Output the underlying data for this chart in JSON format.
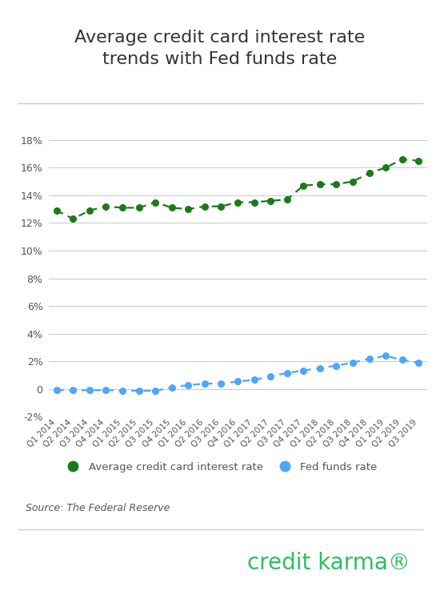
{
  "title": "Average credit card interest rate\ntrends with Fed funds rate",
  "labels": [
    "Q1 2014",
    "Q2 2014",
    "Q3 2014",
    "Q4 2014",
    "Q1 2015",
    "Q2 2015",
    "Q3 2015",
    "Q4 2015",
    "Q1 2016",
    "Q2 2016",
    "Q3 2016",
    "Q4 2016",
    "Q1 2017",
    "Q2 2017",
    "Q3 2017",
    "Q4 2017",
    "Q1 2018",
    "Q2 2018",
    "Q3 2018",
    "Q4 2018",
    "Q1 2019",
    "Q2 2019",
    "Q3 2019"
  ],
  "cc_rate": [
    12.9,
    12.3,
    12.9,
    13.2,
    13.1,
    13.1,
    13.5,
    13.1,
    13.0,
    13.2,
    13.2,
    13.5,
    13.5,
    13.6,
    13.7,
    14.7,
    14.8,
    14.8,
    15.0,
    15.6,
    16.0,
    16.6,
    16.5
  ],
  "fed_rate": [
    -0.07,
    -0.09,
    -0.09,
    -0.09,
    -0.11,
    -0.13,
    -0.13,
    0.12,
    0.29,
    0.38,
    0.4,
    0.54,
    0.66,
    0.91,
    1.16,
    1.33,
    1.51,
    1.69,
    1.91,
    2.18,
    2.4,
    2.1,
    1.9
  ],
  "cc_color": "#1a7a1a",
  "fed_color": "#4da6ff",
  "bg_color": "#ffffff",
  "grid_color": "#cccccc",
  "text_color": "#555555",
  "title_color": "#333333",
  "source_text": "Source: The Federal Reserve",
  "legend_cc": "Average credit card interest rate",
  "legend_fed": "Fed funds rate",
  "brand": "credit karma®",
  "brand_color": "#2dbe60",
  "ylim": [
    -2,
    20
  ],
  "yticks": [
    -2,
    0,
    2,
    4,
    6,
    8,
    10,
    12,
    14,
    16,
    18
  ]
}
